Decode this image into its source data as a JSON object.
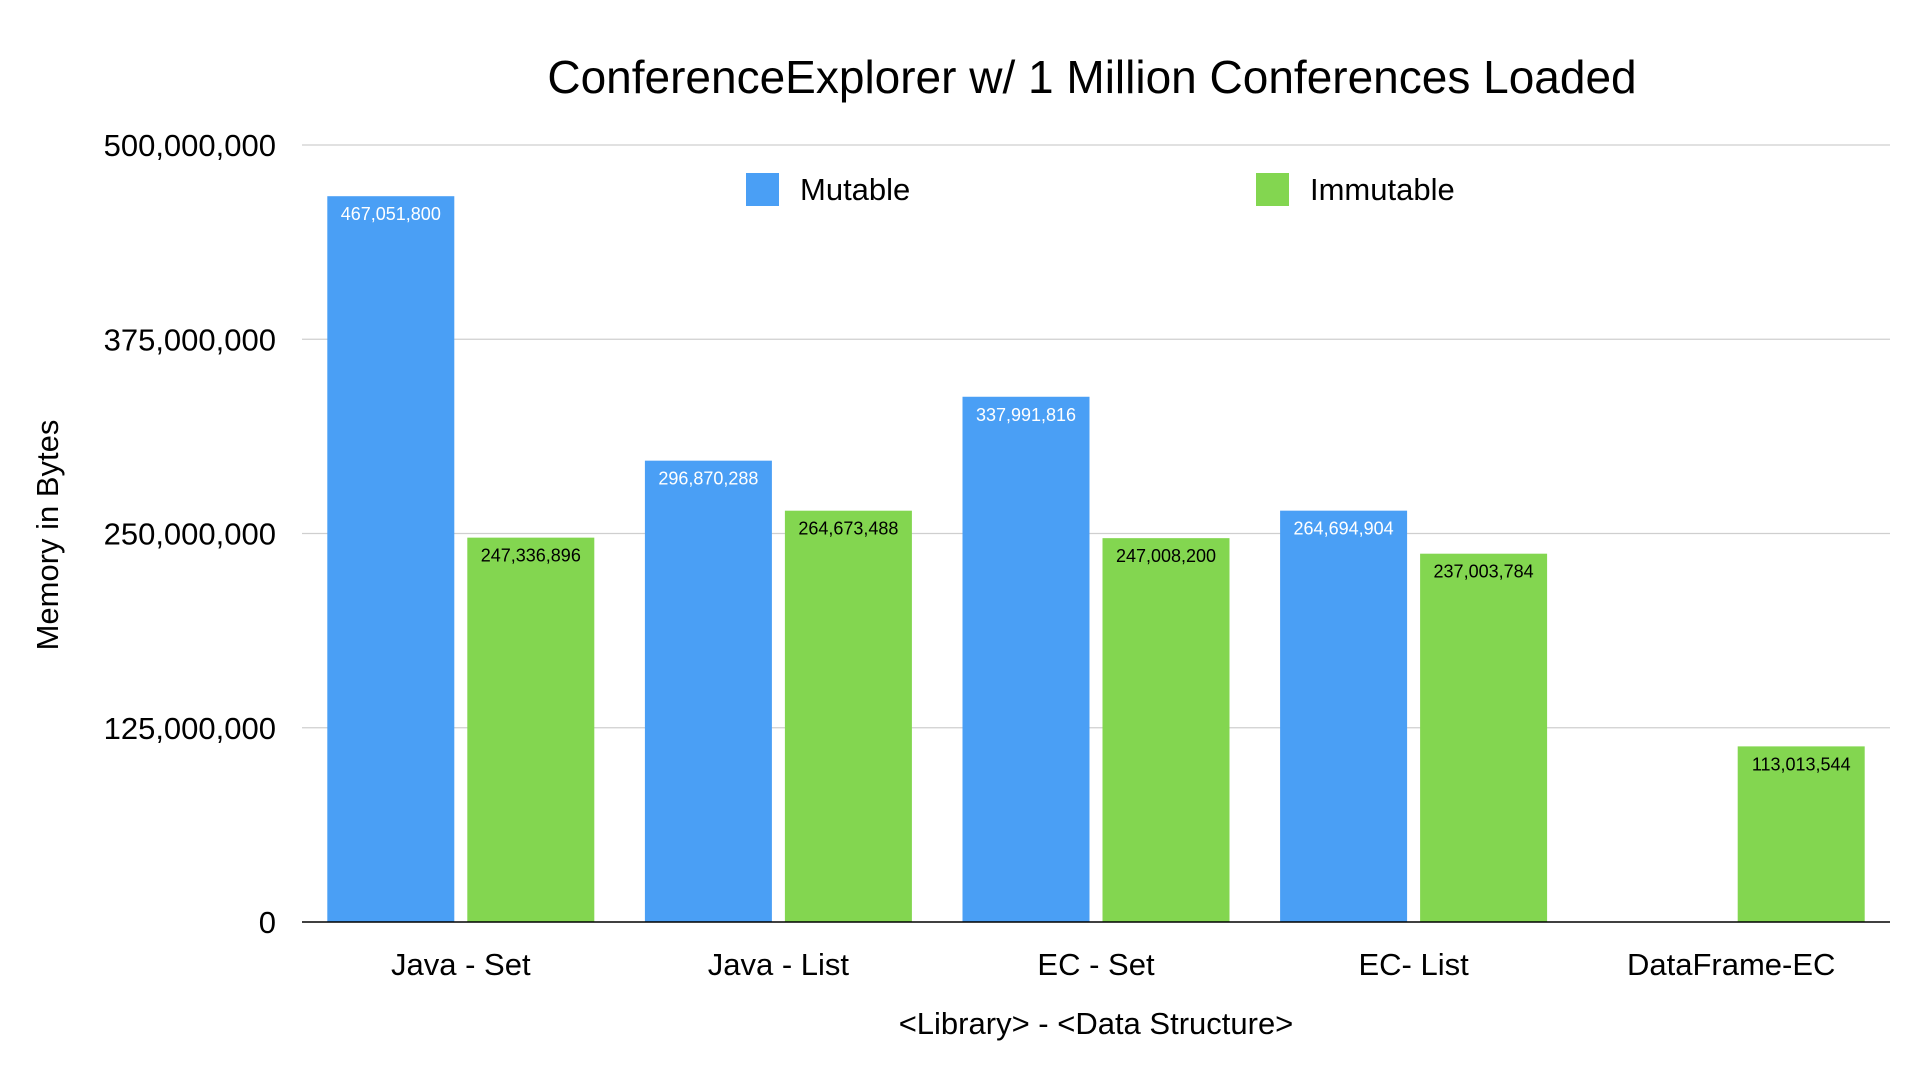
{
  "chart_data": {
    "type": "bar",
    "title": "ConferenceExplorer w/ 1 Million Conferences Loaded",
    "xlabel": "<Library> - <Data Structure>",
    "ylabel": "Memory in Bytes",
    "ylim": [
      0,
      500000000
    ],
    "yticks": [
      0,
      125000000,
      250000000,
      375000000,
      500000000
    ],
    "ytick_labels": [
      "0",
      "125,000,000",
      "250,000,000",
      "375,000,000",
      "500,000,000"
    ],
    "grid": true,
    "legend_position": "top-center",
    "categories": [
      "Java - Set",
      "Java - List",
      "EC - Set",
      "EC- List",
      "DataFrame-EC"
    ],
    "series": [
      {
        "name": "Mutable",
        "color": "#4a9ff5",
        "label_color": "#ffffff",
        "values": [
          467051800,
          296870288,
          337991816,
          264694904,
          null
        ],
        "labels": [
          "467,051,800",
          "296,870,288",
          "337,991,816",
          "264,694,904",
          ""
        ]
      },
      {
        "name": "Immutable",
        "color": "#83d650",
        "label_color": "#000000",
        "values": [
          247336896,
          264673488,
          247008200,
          237003784,
          113013544
        ],
        "labels": [
          "247,336,896",
          "264,673,488",
          "247,008,200",
          "237,003,784",
          "113,013,544"
        ]
      }
    ]
  }
}
